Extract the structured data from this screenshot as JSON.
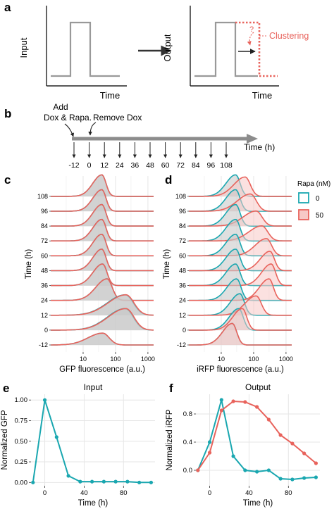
{
  "panels": {
    "a": {
      "letter": "a",
      "input_label": "Input",
      "output_label": "Output",
      "time_label": "Time",
      "question": "?",
      "clustering_label": "Clustering"
    },
    "b": {
      "letter": "b",
      "add_label_1": "Add",
      "add_label_2": "Dox & Rapa.",
      "remove_label": "Remove Dox",
      "time_axis_label": "Time (h)",
      "ticks": [
        "-12",
        "0",
        "12",
        "24",
        "36",
        "48",
        "60",
        "72",
        "84",
        "96",
        "108"
      ]
    },
    "c": {
      "letter": "c"
    },
    "d": {
      "letter": "d"
    },
    "e": {
      "letter": "e"
    },
    "f": {
      "letter": "f"
    }
  },
  "colors": {
    "teal": "#1aa7b0",
    "red": "#e8635c",
    "gray": "#8c8c8c",
    "fill_gray": "#c9c9c9",
    "fill_red": "#f7c9c6",
    "grid": "#e6e6e6",
    "panel_bg": "#ffffff"
  },
  "chart_data": [
    {
      "id": "c",
      "type": "area",
      "ridgeline": true,
      "xlabel": "GFP fluorescence (a.u.)",
      "ylabel": "Time (h)",
      "x_scale": "log",
      "xlim": [
        1,
        1500
      ],
      "x_ticks": [
        "10",
        "100",
        "1000"
      ],
      "categories": [
        "-12",
        "0",
        "12",
        "24",
        "36",
        "48",
        "60",
        "72",
        "84",
        "96",
        "108"
      ],
      "series": [
        {
          "name": "0",
          "peaks": [
            [
              40,
              0.45,
              0.55
            ],
            [
              200,
              0.55,
              1.0
            ],
            [
              200,
              0.55,
              0.95
            ],
            [
              55,
              0.35,
              1.0
            ],
            [
              40,
              0.3,
              1.0
            ],
            [
              38,
              0.28,
              1.0
            ],
            [
              38,
              0.28,
              1.0
            ],
            [
              38,
              0.28,
              1.0
            ],
            [
              38,
              0.28,
              1.0
            ],
            [
              38,
              0.28,
              1.0
            ],
            [
              38,
              0.28,
              1.0
            ]
          ]
        },
        {
          "name": "50",
          "peaks": [
            [
              40,
              0.45,
              0.55
            ],
            [
              210,
              0.55,
              1.0
            ],
            [
              210,
              0.55,
              0.95
            ],
            [
              55,
              0.35,
              1.0
            ],
            [
              40,
              0.3,
              1.0
            ],
            [
              38,
              0.28,
              1.0
            ],
            [
              38,
              0.28,
              1.0
            ],
            [
              38,
              0.28,
              1.0
            ],
            [
              38,
              0.28,
              1.0
            ],
            [
              38,
              0.28,
              1.0
            ],
            [
              38,
              0.28,
              1.0
            ]
          ]
        }
      ]
    },
    {
      "id": "d",
      "type": "area",
      "ridgeline": true,
      "xlabel": "iRFP fluorescence (a.u.)",
      "ylabel": "Time (h)",
      "x_scale": "log",
      "xlim": [
        1,
        1500
      ],
      "x_ticks": [
        "10",
        "100",
        "1000"
      ],
      "categories": [
        "-12",
        "0",
        "12",
        "24",
        "36",
        "48",
        "60",
        "72",
        "84",
        "96",
        "108"
      ],
      "legend": {
        "title": "Rapa (nM)",
        "entries": [
          "0",
          "50"
        ],
        "position": "right"
      },
      "series": [
        {
          "name": "0",
          "peaks": [
            [
              22,
              0.3,
              1.0
            ],
            [
              35,
              0.3,
              1.0
            ],
            [
              38,
              0.3,
              1.0
            ],
            [
              30,
              0.3,
              1.0
            ],
            [
              28,
              0.3,
              1.0
            ],
            [
              28,
              0.3,
              1.0
            ],
            [
              28,
              0.3,
              1.0
            ],
            [
              28,
              0.3,
              1.0
            ],
            [
              28,
              0.3,
              1.0
            ],
            [
              28,
              0.3,
              1.0
            ],
            [
              28,
              0.3,
              1.0
            ]
          ]
        },
        {
          "name": "50",
          "peaks": [
            [
              22,
              0.3,
              1.0
            ],
            [
              45,
              0.3,
              1.0
            ],
            [
              120,
              0.35,
              0.9
            ],
            [
              300,
              0.3,
              1.0
            ],
            [
              350,
              0.3,
              1.0
            ],
            [
              320,
              0.3,
              0.9
            ],
            [
              250,
              0.35,
              0.8
            ],
            [
              180,
              0.4,
              0.7
            ],
            [
              120,
              0.4,
              0.7
            ],
            [
              80,
              0.4,
              0.8
            ],
            [
              55,
              0.35,
              0.9
            ]
          ]
        }
      ]
    },
    {
      "id": "e",
      "type": "line",
      "title": "Input",
      "xlabel": "Time (h)",
      "ylabel": "Normalized GFP",
      "xlim": [
        -14,
        112
      ],
      "ylim": [
        -0.04,
        1.07
      ],
      "x_ticks": [
        0,
        40,
        80
      ],
      "y_ticks": [
        "0.00",
        "0.25",
        "0.50",
        "0.75",
        "1.00"
      ],
      "y_tick_values": [
        0,
        0.25,
        0.5,
        0.75,
        1.0
      ],
      "series": [
        {
          "name": "",
          "color": "#1aa7b0",
          "x": [
            -12,
            0,
            12,
            24,
            36,
            48,
            60,
            72,
            84,
            96,
            108
          ],
          "y": [
            0.0,
            1.0,
            0.55,
            0.08,
            0.01,
            0.01,
            0.01,
            0.01,
            0.01,
            0.0,
            0.0
          ]
        }
      ]
    },
    {
      "id": "f",
      "type": "line",
      "title": "Output",
      "xlabel": "Time (h)",
      "ylabel": "Normalized iRFP",
      "xlim": [
        -14,
        112
      ],
      "ylim": [
        -0.22,
        1.08
      ],
      "x_ticks": [
        0,
        40,
        80
      ],
      "y_ticks": [
        "0.0",
        "0.4",
        "0.8"
      ],
      "y_tick_values": [
        0,
        0.4,
        0.8
      ],
      "series": [
        {
          "name": "0",
          "color": "#1aa7b0",
          "x": [
            -12,
            0,
            12,
            24,
            36,
            48,
            60,
            72,
            84,
            96,
            108
          ],
          "y": [
            0.0,
            0.4,
            1.0,
            0.2,
            0.0,
            -0.02,
            0.0,
            -0.12,
            -0.13,
            -0.11,
            -0.1
          ]
        },
        {
          "name": "50",
          "color": "#e8635c",
          "x": [
            -12,
            0,
            12,
            24,
            36,
            48,
            60,
            72,
            84,
            96,
            108
          ],
          "y": [
            0.0,
            0.25,
            0.85,
            0.98,
            0.97,
            0.9,
            0.72,
            0.5,
            0.38,
            0.24,
            0.1
          ]
        }
      ]
    }
  ]
}
